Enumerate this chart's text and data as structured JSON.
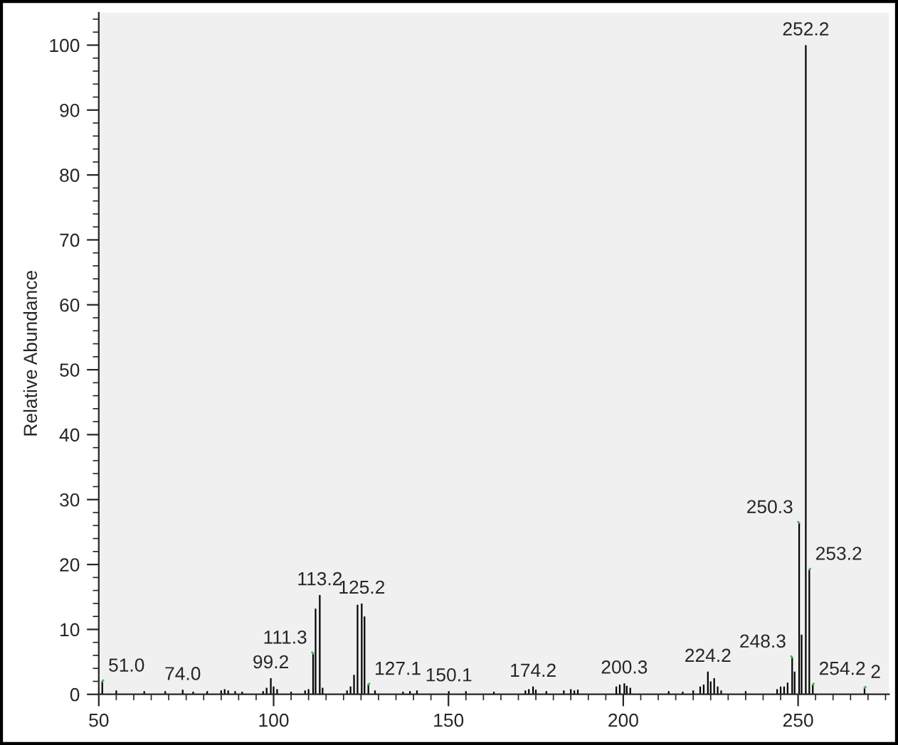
{
  "chart_data": {
    "type": "bar",
    "ylabel": "Relative Abundance",
    "x": [
      51.0,
      55,
      63,
      69,
      74.0,
      77,
      81,
      85,
      86,
      87,
      89,
      91,
      97,
      98,
      99.2,
      100,
      101,
      105,
      109,
      110,
      111.3,
      112,
      113.2,
      114,
      121,
      122,
      123,
      124,
      125.2,
      126,
      127.1,
      129,
      137,
      139,
      141,
      150.1,
      155,
      163,
      172,
      173,
      174.2,
      175,
      178,
      183,
      185,
      186,
      187,
      198,
      199,
      200.3,
      201,
      202,
      213,
      217,
      220,
      222,
      223,
      224.2,
      225,
      226,
      227,
      228,
      235,
      244,
      245,
      246,
      247,
      248.3,
      249,
      250.3,
      251,
      252.2,
      253.2,
      254.2,
      269
    ],
    "values": [
      2,
      0.6,
      0.5,
      0.5,
      0.7,
      0.4,
      0.5,
      0.6,
      0.8,
      0.6,
      0.5,
      0.4,
      0.5,
      1,
      2.5,
      1.2,
      0.8,
      0.4,
      0.6,
      0.8,
      6.3,
      13.2,
      15.3,
      1,
      0.6,
      1.2,
      3,
      13.8,
      14,
      12,
      1.5,
      0.6,
      0.4,
      0.5,
      0.6,
      0.5,
      0.5,
      0.4,
      0.6,
      0.8,
      1.2,
      0.7,
      0.5,
      0.6,
      0.8,
      0.6,
      0.7,
      1.2,
      1.5,
      1.7,
      1.3,
      1,
      0.5,
      0.4,
      0.6,
      1.2,
      1.5,
      3.5,
      2,
      2.5,
      1.2,
      0.6,
      0.5,
      0.8,
      1.2,
      1.2,
      1.8,
      5.7,
      3.5,
      26.4,
      9.2,
      100,
      19.2,
      1.5,
      1
    ],
    "color": "#000000",
    "annotations": [
      {
        "text": "51.0",
        "x": 51.0,
        "y": 2
      },
      {
        "text": "74.0",
        "x": 74.0,
        "y": 0.7
      },
      {
        "text": "99.2",
        "x": 99.2,
        "y": 2.5
      },
      {
        "text": "111.3",
        "x": 111.3,
        "y": 6.3
      },
      {
        "text": "113.2",
        "x": 113.2,
        "y": 15.3
      },
      {
        "text": "125.2",
        "x": 125.2,
        "y": 14
      },
      {
        "text": "127.1",
        "x": 127.1,
        "y": 1.5
      },
      {
        "text": "150.1",
        "x": 150.1,
        "y": 0.5
      },
      {
        "text": "174.2",
        "x": 174.2,
        "y": 1.2
      },
      {
        "text": "200.3",
        "x": 200.3,
        "y": 1.7
      },
      {
        "text": "224.2",
        "x": 224.2,
        "y": 3.5
      },
      {
        "text": "248.3",
        "x": 248.3,
        "y": 5.7
      },
      {
        "text": "250.3",
        "x": 250.3,
        "y": 26.4
      },
      {
        "text": "252.2",
        "x": 252.2,
        "y": 100
      },
      {
        "text": "253.2",
        "x": 253.2,
        "y": 19.2
      },
      {
        "text": "254.2",
        "x": 254.2,
        "y": 1.5
      },
      {
        "text": "2",
        "x": 269,
        "y": 1
      }
    ],
    "xlim": [
      50,
      276
    ],
    "xticks": [
      50,
      100,
      150,
      200,
      250
    ],
    "ylim": [
      0,
      105
    ],
    "yticks": [
      0,
      10,
      20,
      30,
      40,
      50,
      60,
      70,
      80,
      90,
      100
    ],
    "grid": false
  }
}
